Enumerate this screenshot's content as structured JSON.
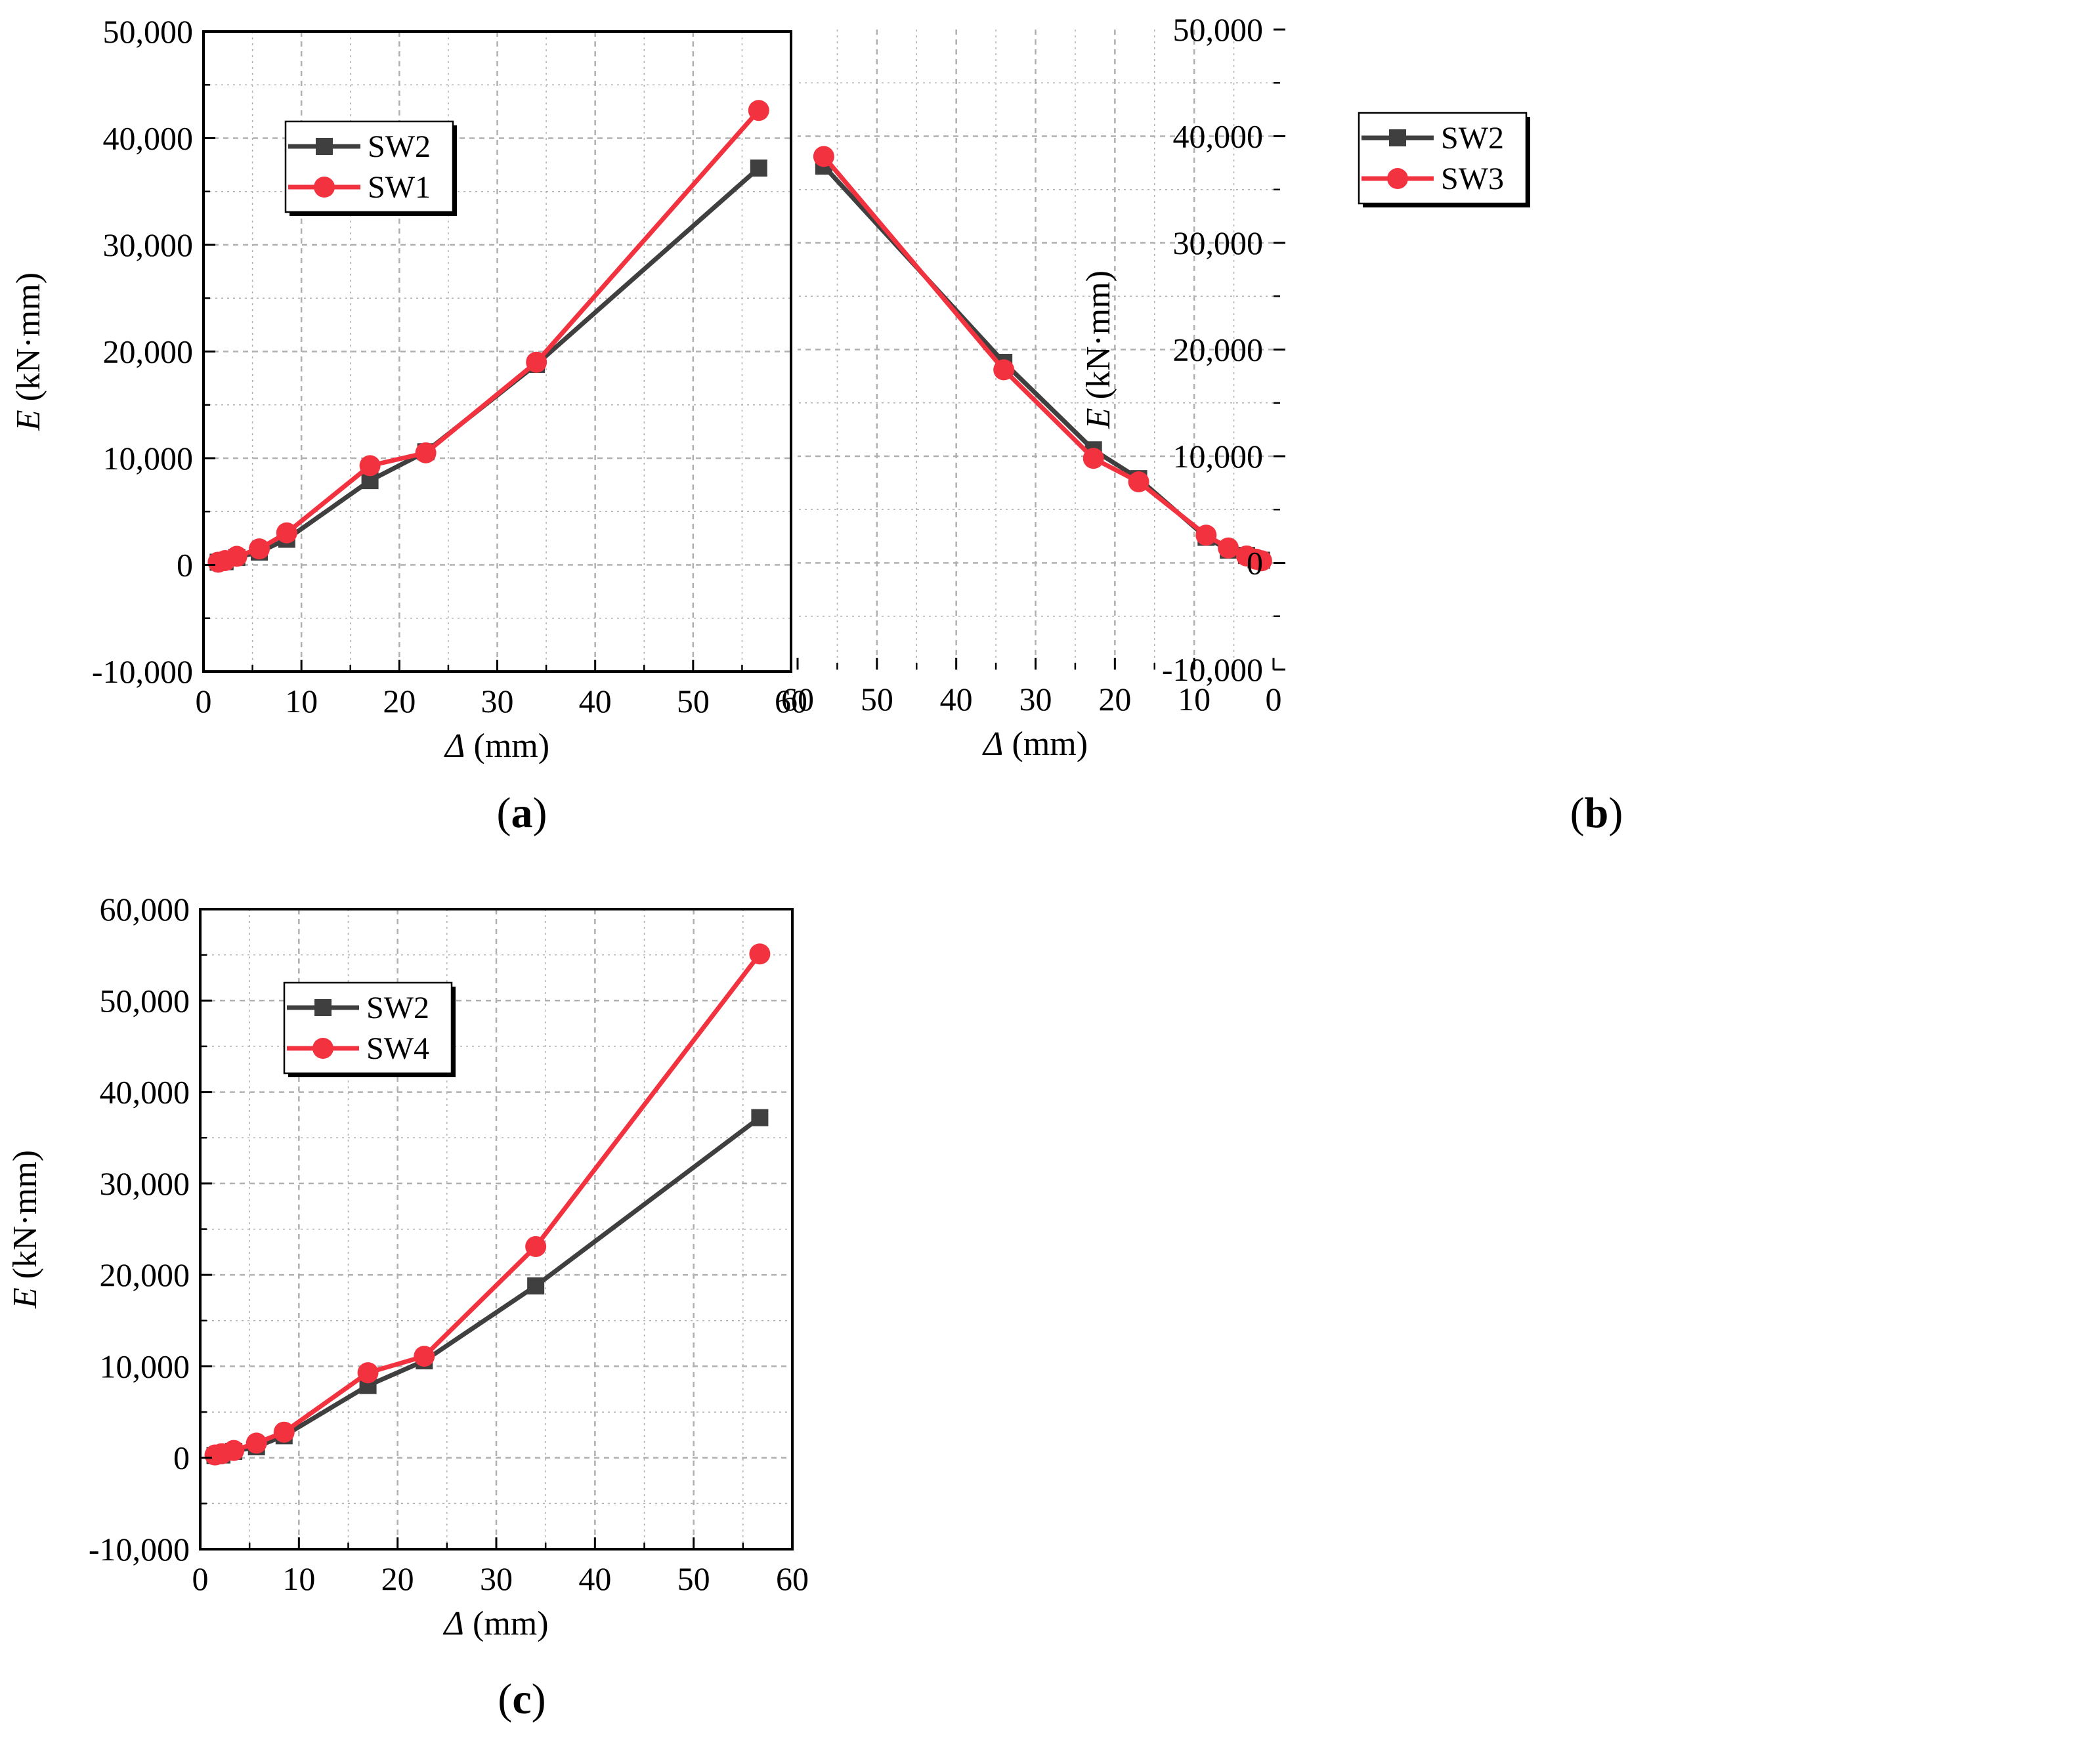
{
  "colors": {
    "series_gray": "#3f3f3f",
    "series_red": "#f2333f",
    "grid": "#b0b0b0",
    "axis": "#000000"
  },
  "chart_data": [
    {
      "type": "line",
      "panel_label": {
        "open": "(",
        "letter": "a",
        "close": ")"
      },
      "xlabel": {
        "symbol": "Δ",
        "unit": " (mm)"
      },
      "ylabel": {
        "symbol": "E",
        "unit": " (kN·mm)"
      },
      "xlim": [
        0,
        60
      ],
      "ylim": [
        -10000,
        50000
      ],
      "xticks": [
        0,
        10,
        20,
        30,
        40,
        50,
        60
      ],
      "xtick_labels": [
        "0",
        "10",
        "20",
        "30",
        "40",
        "50",
        "60"
      ],
      "yticks": [
        -10000,
        0,
        10000,
        20000,
        30000,
        40000,
        50000
      ],
      "ytick_labels": [
        "-10,000",
        "0",
        "10,000",
        "20,000",
        "30,000",
        "40,000",
        "50,000"
      ],
      "grid": true,
      "legend_position": "upper-left",
      "series": [
        {
          "name": "SW2",
          "color": "#3f3f3f",
          "marker": "square",
          "x": [
            1.5,
            2.2,
            3.4,
            5.7,
            8.5,
            17.0,
            22.7,
            34.0,
            56.7
          ],
          "y": [
            250,
            300,
            700,
            1200,
            2400,
            7900,
            10600,
            18800,
            37200
          ]
        },
        {
          "name": "SW1",
          "color": "#f2333f",
          "marker": "circle",
          "x": [
            1.5,
            2.2,
            3.4,
            5.7,
            8.5,
            17.0,
            22.7,
            34.0,
            56.7
          ],
          "y": [
            250,
            400,
            800,
            1500,
            3000,
            9300,
            10500,
            19000,
            42600
          ]
        }
      ]
    },
    {
      "type": "line",
      "panel_label": {
        "open": "(",
        "letter": "b",
        "close": ")"
      },
      "xlabel": {
        "symbol": "Δ",
        "unit": " (mm)"
      },
      "ylabel": {
        "symbol": "E",
        "unit": " (kN·mm)"
      },
      "xlim": [
        0,
        60
      ],
      "ylim": [
        -10000,
        50000
      ],
      "xticks": [
        0,
        10,
        20,
        30,
        40,
        50,
        60
      ],
      "xtick_labels": [
        "0",
        "10",
        "20",
        "30",
        "40",
        "50",
        "60"
      ],
      "yticks": [
        -10000,
        0,
        10000,
        20000,
        30000,
        40000,
        50000
      ],
      "ytick_labels": [
        "-10,000",
        "0",
        "10,000",
        "20,000",
        "30,000",
        "40,000",
        "50,000"
      ],
      "grid": true,
      "legend_position": "upper-left",
      "series": [
        {
          "name": "SW2",
          "color": "#3f3f3f",
          "marker": "square",
          "x": [
            1.5,
            2.2,
            3.4,
            5.7,
            8.5,
            17.0,
            22.7,
            34.0,
            56.7
          ],
          "y": [
            250,
            300,
            700,
            1200,
            2400,
            7900,
            10600,
            18800,
            37200
          ]
        },
        {
          "name": "SW3",
          "color": "#f2333f",
          "marker": "circle",
          "x": [
            1.5,
            2.2,
            3.4,
            5.7,
            8.5,
            17.0,
            22.7,
            34.0,
            56.7
          ],
          "y": [
            200,
            350,
            650,
            1400,
            2600,
            7600,
            9800,
            18100,
            38100
          ]
        }
      ]
    },
    {
      "type": "line",
      "panel_label": {
        "open": "(",
        "letter": "c",
        "close": ")"
      },
      "xlabel": {
        "symbol": "Δ",
        "unit": " (mm)"
      },
      "ylabel": {
        "symbol": "E",
        "unit": " (kN·mm)"
      },
      "xlim": [
        0,
        60
      ],
      "ylim": [
        -10000,
        60000
      ],
      "xticks": [
        0,
        10,
        20,
        30,
        40,
        50,
        60
      ],
      "xtick_labels": [
        "0",
        "10",
        "20",
        "30",
        "40",
        "50",
        "60"
      ],
      "yticks": [
        -10000,
        0,
        10000,
        20000,
        30000,
        40000,
        50000,
        60000
      ],
      "ytick_labels": [
        "-10,000",
        "0",
        "10,000",
        "20,000",
        "30,000",
        "40,000",
        "50,000",
        "60,000"
      ],
      "grid": true,
      "legend_position": "upper-left",
      "series": [
        {
          "name": "SW2",
          "color": "#3f3f3f",
          "marker": "square",
          "x": [
            1.5,
            2.2,
            3.4,
            5.7,
            8.5,
            17.0,
            22.7,
            34.0,
            56.7
          ],
          "y": [
            250,
            300,
            700,
            1200,
            2400,
            7900,
            10600,
            18800,
            37200
          ]
        },
        {
          "name": "SW4",
          "color": "#f2333f",
          "marker": "circle",
          "x": [
            1.5,
            2.2,
            3.4,
            5.7,
            8.5,
            17.0,
            22.7,
            34.0,
            56.7
          ],
          "y": [
            300,
            450,
            800,
            1600,
            2800,
            9300,
            11100,
            23100,
            55100
          ]
        }
      ]
    }
  ]
}
